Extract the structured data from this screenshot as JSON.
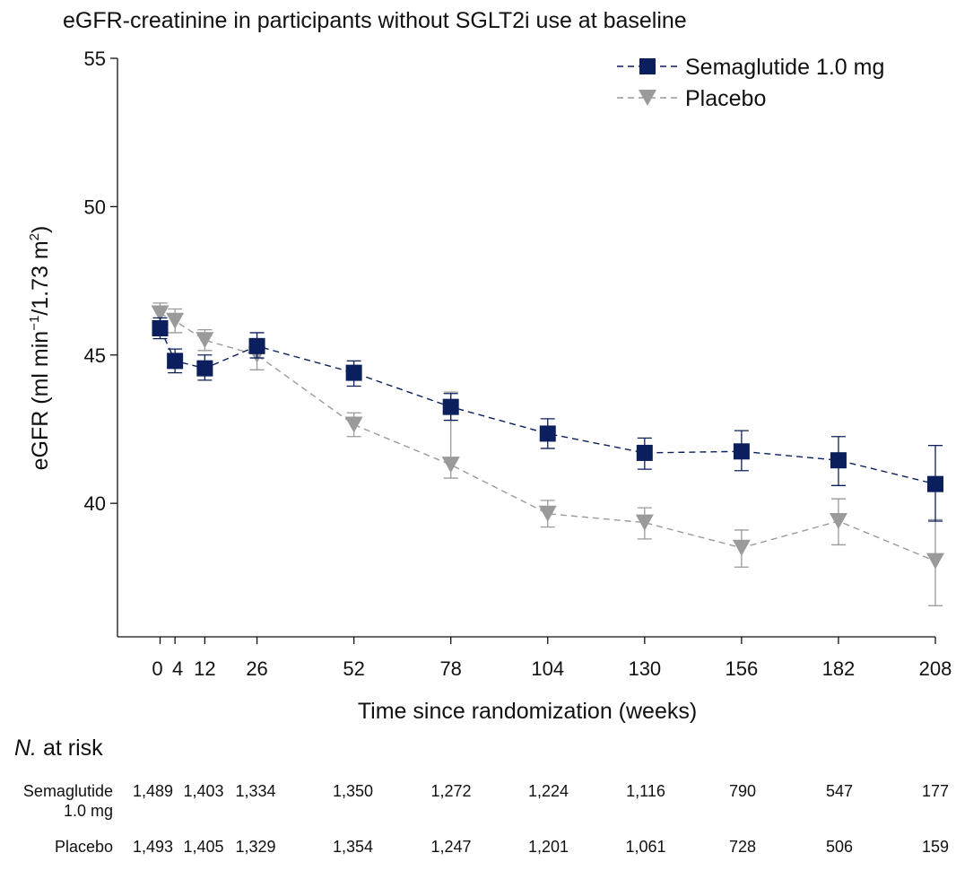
{
  "chart_data": {
    "type": "line",
    "title": "eGFR-creatinine in participants without SGLT2i use at baseline",
    "xlabel": "Time since randomization (weeks)",
    "ylabel_main": "eGFR (ml min",
    "ylabel_sup1": "−1",
    "ylabel_mid": "/1.73 m",
    "ylabel_sup2": "2",
    "ylabel_end": ")",
    "xlim": [
      0,
      208
    ],
    "ylim": [
      35.5,
      55
    ],
    "x_ticks": [
      0,
      4,
      12,
      26,
      52,
      78,
      104,
      130,
      156,
      182,
      208
    ],
    "x_tick_labels": [
      "0",
      "4",
      "12",
      "26",
      "52",
      "78",
      "104",
      "130",
      "156",
      "182",
      "208"
    ],
    "y_ticks": [
      40,
      45,
      50,
      55
    ],
    "y_tick_labels": [
      "40",
      "45",
      "50",
      "55"
    ],
    "series": [
      {
        "name": "Semaglutide 1.0 mg",
        "color": "#0b1f5e",
        "marker": "square",
        "x": [
          0,
          4,
          12,
          26,
          52,
          78,
          104,
          130,
          156,
          182,
          208
        ],
        "y": [
          45.9,
          44.8,
          44.55,
          45.3,
          44.4,
          43.25,
          42.35,
          41.7,
          41.75,
          41.45,
          40.65
        ],
        "err_low": [
          45.55,
          44.4,
          44.15,
          44.9,
          43.95,
          42.8,
          41.85,
          41.15,
          41.1,
          40.6,
          39.4
        ],
        "err_high": [
          46.25,
          45.2,
          45.0,
          45.75,
          44.8,
          43.7,
          42.85,
          42.2,
          42.45,
          42.25,
          41.95
        ]
      },
      {
        "name": "Placebo",
        "color": "#9a9a9a",
        "marker": "triangle-down",
        "x": [
          0,
          4,
          12,
          26,
          52,
          78,
          104,
          130,
          156,
          182,
          208
        ],
        "y": [
          46.4,
          46.15,
          45.5,
          45.0,
          42.65,
          41.3,
          39.65,
          39.35,
          38.5,
          39.4,
          38.05
        ],
        "err_low": [
          46.05,
          45.75,
          45.15,
          44.5,
          42.25,
          40.85,
          39.2,
          38.8,
          37.85,
          38.6,
          36.55
        ],
        "err_high": [
          46.75,
          46.55,
          45.85,
          45.5,
          43.05,
          43.75,
          40.1,
          39.85,
          39.1,
          40.15,
          39.45
        ]
      }
    ],
    "legend_position": "top-right",
    "at_risk": {
      "title_italic": "N.",
      "title_rest": " at risk",
      "rows": [
        {
          "label_lines": [
            "Semaglutide",
            "1.0 mg"
          ],
          "values": [
            "1,489",
            "1,403",
            "1,334",
            "1,350",
            "1,272",
            "1,224",
            "1,116",
            "790",
            "547",
            "177"
          ]
        },
        {
          "label_lines": [
            "Placebo"
          ],
          "values": [
            "1,493",
            "1,405",
            "1,329",
            "1,354",
            "1,247",
            "1,201",
            "1,061",
            "728",
            "506",
            "159"
          ]
        }
      ]
    }
  }
}
